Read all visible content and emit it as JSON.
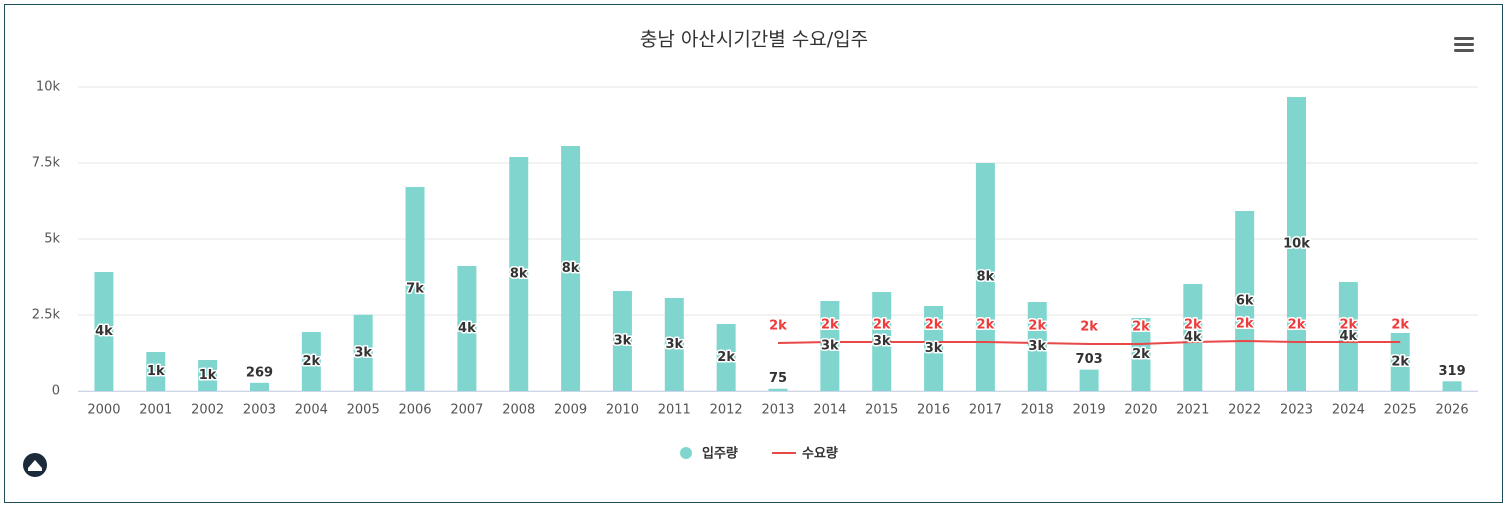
{
  "chart_data": {
    "type": "combo",
    "title": "충남 아산시기간별 수요/입주",
    "categories": [
      "2000",
      "2001",
      "2002",
      "2003",
      "2004",
      "2005",
      "2006",
      "2007",
      "2008",
      "2009",
      "2010",
      "2011",
      "2012",
      "2013",
      "2014",
      "2015",
      "2016",
      "2017",
      "2018",
      "2019",
      "2020",
      "2021",
      "2022",
      "2023",
      "2024",
      "2025",
      "2026"
    ],
    "series": [
      {
        "name": "입주량",
        "type": "bar",
        "color": "#80d6cf",
        "values": [
          3914,
          1283,
          1020,
          269,
          1941,
          2510,
          6710,
          4112,
          7697,
          8059,
          3289,
          3059,
          2204,
          75,
          2961,
          3257,
          2796,
          7500,
          2928,
          703,
          2401,
          3520,
          5921,
          9671,
          3586,
          1908,
          319
        ],
        "value_labels": [
          "4k",
          "1k",
          "1k",
          "269",
          "2k",
          "3k",
          "7k",
          "4k",
          "8k",
          "8k",
          "3k",
          "3k",
          "2k",
          "75",
          "3k",
          "3k",
          "3k",
          "8k",
          "3k",
          "703",
          "2k",
          "4k",
          "6k",
          "10k",
          "4k",
          "2k",
          "319"
        ]
      },
      {
        "name": "수요량",
        "type": "line",
        "color": "#e84848",
        "values": [
          null,
          null,
          null,
          null,
          null,
          null,
          null,
          null,
          null,
          null,
          null,
          null,
          null,
          1579,
          1612,
          1612,
          1612,
          1612,
          1579,
          1546,
          1546,
          1612,
          1645,
          1612,
          1612,
          1612,
          null
        ],
        "value_labels": [
          null,
          null,
          null,
          null,
          null,
          null,
          null,
          null,
          null,
          null,
          null,
          null,
          null,
          "2k",
          "2k",
          "2k",
          "2k",
          "2k",
          "2k",
          "2k",
          "2k",
          "2k",
          "2k",
          "2k",
          "2k",
          "2k",
          null
        ]
      }
    ],
    "ylim": [
      0,
      10000
    ],
    "yticks": [
      0,
      {
        "value": 2500,
        "label": "2.5k"
      },
      {
        "value": 5000,
        "label": "5k"
      },
      {
        "value": 7500,
        "label": "7.5k"
      },
      {
        "value": 10000,
        "label": "10k"
      }
    ],
    "grid": true,
    "legend": "bottom"
  }
}
